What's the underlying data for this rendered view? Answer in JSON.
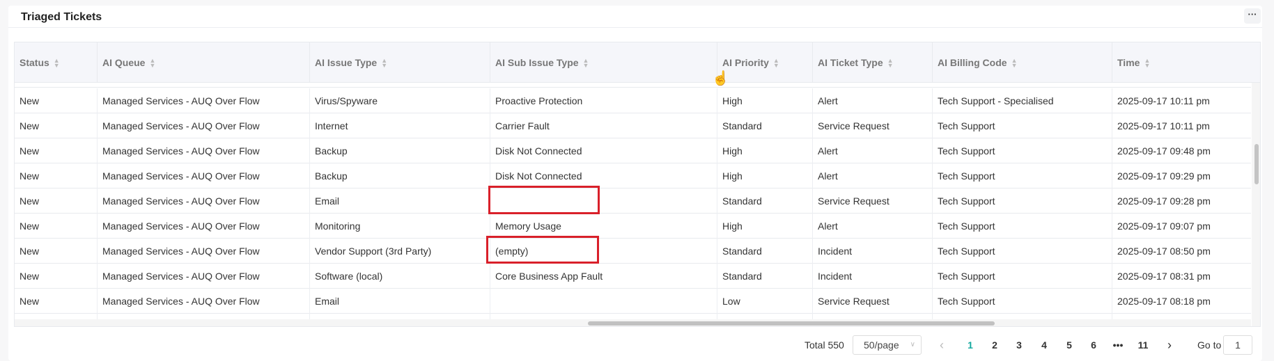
{
  "title": "Triaged Tickets",
  "more_label": "···",
  "columns": [
    "Status",
    "AI Queue",
    "AI Issue Type",
    "AI Sub Issue Type",
    "AI Priority",
    "AI Ticket Type",
    "AI Billing Code",
    "Time"
  ],
  "rows": [
    [
      "New",
      "Managed Services - AUQ Over Flow",
      "Virus/Spyware",
      "Proactive Protection",
      "High",
      "Alert",
      "Tech Support - Specialised",
      "2025-09-17 10:11 pm"
    ],
    [
      "New",
      "Managed Services - AUQ Over Flow",
      "Internet",
      "Carrier Fault",
      "Standard",
      "Service Request",
      "Tech Support",
      "2025-09-17 10:11 pm"
    ],
    [
      "New",
      "Managed Services - AUQ Over Flow",
      "Backup",
      "Disk Not Connected",
      "High",
      "Alert",
      "Tech Support",
      "2025-09-17 09:48 pm"
    ],
    [
      "New",
      "Managed Services - AUQ Over Flow",
      "Backup",
      "Disk Not Connected",
      "High",
      "Alert",
      "Tech Support",
      "2025-09-17 09:29 pm"
    ],
    [
      "New",
      "Managed Services - AUQ Over Flow",
      "Email",
      "",
      "Standard",
      "Service Request",
      "Tech Support",
      "2025-09-17 09:28 pm"
    ],
    [
      "New",
      "Managed Services - AUQ Over Flow",
      "Monitoring",
      "Memory Usage",
      "High",
      "Alert",
      "Tech Support",
      "2025-09-17 09:07 pm"
    ],
    [
      "New",
      "Managed Services - AUQ Over Flow",
      "Vendor Support (3rd Party)",
      "(empty)",
      "Standard",
      "Incident",
      "Tech Support",
      "2025-09-17 08:50 pm"
    ],
    [
      "New",
      "Managed Services - AUQ Over Flow",
      "Software (local)",
      "Core Business App Fault",
      "Standard",
      "Incident",
      "Tech Support",
      "2025-09-17 08:31 pm"
    ],
    [
      "New",
      "Managed Services - AUQ Over Flow",
      "Email",
      "",
      "Low",
      "Service Request",
      "Tech Support",
      "2025-09-17 08:18 pm"
    ],
    [
      "",
      "",
      "",
      "",
      "",
      "",
      "",
      ""
    ]
  ],
  "highlight_color": "#d9202a",
  "pagination": {
    "total": "Total 550",
    "page_size": "50/page",
    "prev": "‹",
    "pages": [
      "1",
      "2",
      "3",
      "4",
      "5",
      "6",
      "•••",
      "11"
    ],
    "current": "1",
    "next": "›",
    "goto_label": "Go to",
    "goto_value": "1",
    "accent": "#13a89e"
  }
}
